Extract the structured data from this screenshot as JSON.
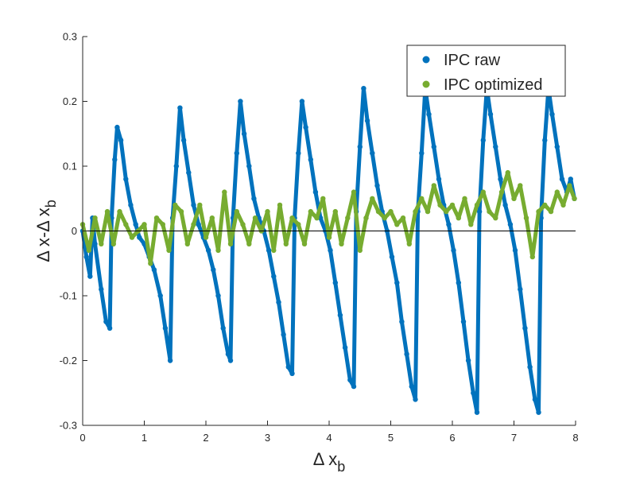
{
  "chart_data": {
    "type": "scatter",
    "title": "",
    "xlabel": "Δ x",
    "xlabel_sub": "b",
    "ylabel": "Δ x-Δ x",
    "ylabel_sub": "b",
    "xlim": [
      0,
      8
    ],
    "ylim": [
      -0.3,
      0.3
    ],
    "x_ticks": [
      0,
      1,
      2,
      3,
      4,
      5,
      6,
      7,
      8
    ],
    "x_tick_labels": [
      "0",
      "1",
      "2",
      "3",
      "4",
      "5",
      "6",
      "7",
      "8"
    ],
    "y_ticks": [
      -0.3,
      -0.2,
      -0.1,
      0,
      0.1,
      0.2,
      0.3
    ],
    "y_tick_labels": [
      "-0.3",
      "-0.2",
      "-0.1",
      "0",
      "0.1",
      "0.2",
      "0.3"
    ],
    "grid": false,
    "legend_position": "top-right",
    "zero_line": true,
    "series": [
      {
        "name": "IPC raw",
        "color": "#0072BD",
        "points": [
          [
            0.0,
            0.0
          ],
          [
            0.06,
            -0.04
          ],
          [
            0.12,
            -0.07
          ],
          [
            0.16,
            0.02
          ],
          [
            0.2,
            -0.02
          ],
          [
            0.3,
            -0.09
          ],
          [
            0.38,
            -0.14
          ],
          [
            0.44,
            -0.15
          ],
          [
            0.47,
            0.02
          ],
          [
            0.52,
            0.11
          ],
          [
            0.56,
            0.16
          ],
          [
            0.62,
            0.14
          ],
          [
            0.7,
            0.08
          ],
          [
            0.78,
            0.04
          ],
          [
            0.86,
            0.01
          ],
          [
            0.92,
            -0.01
          ],
          [
            1.0,
            -0.02
          ],
          [
            1.08,
            -0.04
          ],
          [
            1.16,
            -0.06
          ],
          [
            1.26,
            -0.1
          ],
          [
            1.34,
            -0.15
          ],
          [
            1.42,
            -0.2
          ],
          [
            1.46,
            0.02
          ],
          [
            1.52,
            0.1
          ],
          [
            1.58,
            0.19
          ],
          [
            1.64,
            0.14
          ],
          [
            1.72,
            0.09
          ],
          [
            1.8,
            0.04
          ],
          [
            1.88,
            0.01
          ],
          [
            1.96,
            -0.01
          ],
          [
            2.04,
            -0.03
          ],
          [
            2.12,
            -0.06
          ],
          [
            2.2,
            -0.1
          ],
          [
            2.28,
            -0.15
          ],
          [
            2.36,
            -0.19
          ],
          [
            2.4,
            -0.2
          ],
          [
            2.44,
            0.02
          ],
          [
            2.5,
            0.12
          ],
          [
            2.56,
            0.2
          ],
          [
            2.62,
            0.15
          ],
          [
            2.7,
            0.1
          ],
          [
            2.78,
            0.05
          ],
          [
            2.86,
            0.02
          ],
          [
            2.94,
            0.0
          ],
          [
            3.02,
            -0.03
          ],
          [
            3.1,
            -0.07
          ],
          [
            3.18,
            -0.11
          ],
          [
            3.26,
            -0.16
          ],
          [
            3.34,
            -0.21
          ],
          [
            3.4,
            -0.22
          ],
          [
            3.44,
            0.02
          ],
          [
            3.5,
            0.12
          ],
          [
            3.56,
            0.2
          ],
          [
            3.62,
            0.16
          ],
          [
            3.7,
            0.11
          ],
          [
            3.78,
            0.06
          ],
          [
            3.86,
            0.02
          ],
          [
            3.94,
            0.0
          ],
          [
            4.02,
            -0.03
          ],
          [
            4.1,
            -0.08
          ],
          [
            4.18,
            -0.13
          ],
          [
            4.26,
            -0.18
          ],
          [
            4.34,
            -0.23
          ],
          [
            4.4,
            -0.24
          ],
          [
            4.44,
            0.03
          ],
          [
            4.5,
            0.13
          ],
          [
            4.56,
            0.22
          ],
          [
            4.62,
            0.17
          ],
          [
            4.7,
            0.12
          ],
          [
            4.78,
            0.07
          ],
          [
            4.86,
            0.03
          ],
          [
            4.94,
            0.0
          ],
          [
            5.02,
            -0.04
          ],
          [
            5.1,
            -0.08
          ],
          [
            5.18,
            -0.14
          ],
          [
            5.26,
            -0.19
          ],
          [
            5.34,
            -0.24
          ],
          [
            5.4,
            -0.26
          ],
          [
            5.44,
            0.03
          ],
          [
            5.5,
            0.12
          ],
          [
            5.56,
            0.22
          ],
          [
            5.62,
            0.18
          ],
          [
            5.7,
            0.13
          ],
          [
            5.78,
            0.08
          ],
          [
            5.86,
            0.04
          ],
          [
            5.94,
            0.01
          ],
          [
            6.02,
            -0.03
          ],
          [
            6.1,
            -0.08
          ],
          [
            6.18,
            -0.14
          ],
          [
            6.26,
            -0.2
          ],
          [
            6.34,
            -0.25
          ],
          [
            6.4,
            -0.28
          ],
          [
            6.44,
            0.03
          ],
          [
            6.5,
            0.14
          ],
          [
            6.56,
            0.22
          ],
          [
            6.62,
            0.18
          ],
          [
            6.7,
            0.13
          ],
          [
            6.78,
            0.08
          ],
          [
            6.86,
            0.04
          ],
          [
            6.94,
            0.01
          ],
          [
            7.02,
            -0.03
          ],
          [
            7.1,
            -0.09
          ],
          [
            7.18,
            -0.15
          ],
          [
            7.26,
            -0.21
          ],
          [
            7.34,
            -0.26
          ],
          [
            7.4,
            -0.28
          ],
          [
            7.44,
            0.02
          ],
          [
            7.5,
            0.14
          ],
          [
            7.56,
            0.22
          ],
          [
            7.62,
            0.18
          ],
          [
            7.7,
            0.13
          ],
          [
            7.78,
            0.08
          ],
          [
            7.86,
            0.06
          ],
          [
            7.92,
            0.08
          ],
          [
            7.98,
            0.05
          ]
        ]
      },
      {
        "name": "IPC optimized",
        "color": "#77AC30",
        "points": [
          [
            0.0,
            0.01
          ],
          [
            0.1,
            -0.03
          ],
          [
            0.2,
            0.02
          ],
          [
            0.3,
            -0.02
          ],
          [
            0.4,
            0.03
          ],
          [
            0.5,
            -0.02
          ],
          [
            0.6,
            0.03
          ],
          [
            0.7,
            0.01
          ],
          [
            0.8,
            -0.01
          ],
          [
            0.9,
            0.0
          ],
          [
            1.0,
            0.01
          ],
          [
            1.1,
            -0.05
          ],
          [
            1.2,
            0.02
          ],
          [
            1.3,
            0.01
          ],
          [
            1.4,
            -0.03
          ],
          [
            1.5,
            0.04
          ],
          [
            1.6,
            0.03
          ],
          [
            1.7,
            -0.02
          ],
          [
            1.8,
            0.01
          ],
          [
            1.9,
            0.04
          ],
          [
            2.0,
            -0.01
          ],
          [
            2.1,
            0.02
          ],
          [
            2.2,
            -0.03
          ],
          [
            2.3,
            0.06
          ],
          [
            2.4,
            -0.02
          ],
          [
            2.5,
            0.03
          ],
          [
            2.6,
            0.01
          ],
          [
            2.7,
            -0.02
          ],
          [
            2.8,
            0.02
          ],
          [
            2.9,
            0.0
          ],
          [
            3.0,
            0.03
          ],
          [
            3.1,
            -0.03
          ],
          [
            3.2,
            0.04
          ],
          [
            3.3,
            -0.02
          ],
          [
            3.4,
            0.02
          ],
          [
            3.5,
            0.01
          ],
          [
            3.6,
            -0.02
          ],
          [
            3.7,
            0.03
          ],
          [
            3.8,
            0.02
          ],
          [
            3.9,
            0.05
          ],
          [
            4.0,
            -0.01
          ],
          [
            4.1,
            0.03
          ],
          [
            4.2,
            -0.02
          ],
          [
            4.3,
            0.02
          ],
          [
            4.4,
            0.06
          ],
          [
            4.5,
            -0.03
          ],
          [
            4.6,
            0.02
          ],
          [
            4.7,
            0.05
          ],
          [
            4.8,
            0.03
          ],
          [
            4.9,
            0.02
          ],
          [
            5.0,
            0.03
          ],
          [
            5.1,
            0.01
          ],
          [
            5.2,
            0.02
          ],
          [
            5.3,
            -0.02
          ],
          [
            5.4,
            0.03
          ],
          [
            5.5,
            0.05
          ],
          [
            5.6,
            0.03
          ],
          [
            5.7,
            0.07
          ],
          [
            5.8,
            0.04
          ],
          [
            5.9,
            0.03
          ],
          [
            6.0,
            0.04
          ],
          [
            6.1,
            0.02
          ],
          [
            6.2,
            0.05
          ],
          [
            6.3,
            0.01
          ],
          [
            6.4,
            0.04
          ],
          [
            6.5,
            0.06
          ],
          [
            6.6,
            0.03
          ],
          [
            6.7,
            0.02
          ],
          [
            6.8,
            0.06
          ],
          [
            6.9,
            0.09
          ],
          [
            7.0,
            0.05
          ],
          [
            7.1,
            0.07
          ],
          [
            7.2,
            0.02
          ],
          [
            7.3,
            -0.04
          ],
          [
            7.4,
            0.03
          ],
          [
            7.5,
            0.04
          ],
          [
            7.6,
            0.03
          ],
          [
            7.7,
            0.06
          ],
          [
            7.8,
            0.04
          ],
          [
            7.9,
            0.07
          ],
          [
            7.98,
            0.05
          ]
        ]
      }
    ]
  }
}
